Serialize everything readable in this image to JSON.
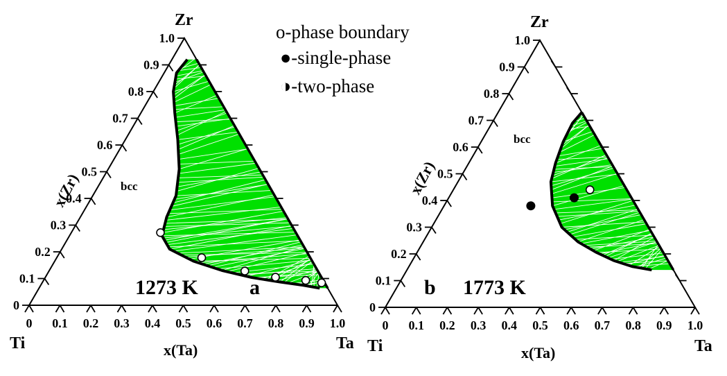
{
  "legend": {
    "boundary": "o-phase boundary",
    "single": "●-single-phase",
    "two": "◑-two-phase"
  },
  "chart_data": [
    {
      "type": "scatter",
      "subtype": "ternary",
      "panel": "a",
      "temperature": "1273 K",
      "vertices": {
        "top": "Zr",
        "left": "Ti",
        "right": "Ta"
      },
      "xlabel": "x(Ta)",
      "ylabel": "x(Zr)",
      "ticks": [
        "0",
        "0.1",
        "0.2",
        "0.3",
        "0.4",
        "0.5",
        "0.6",
        "0.7",
        "0.8",
        "0.9",
        "1.0"
      ],
      "region_label": "bcc",
      "fill_color": "#00e000",
      "boundary_curve": [
        {
          "x_ta": 0.05,
          "x_zr": 0.92
        },
        {
          "x_ta": 0.04,
          "x_zr": 0.87
        },
        {
          "x_ta": 0.065,
          "x_zr": 0.8
        },
        {
          "x_ta": 0.11,
          "x_zr": 0.72
        },
        {
          "x_ta": 0.17,
          "x_zr": 0.62
        },
        {
          "x_ta": 0.23,
          "x_zr": 0.51
        },
        {
          "x_ta": 0.27,
          "x_zr": 0.41
        },
        {
          "x_ta": 0.28,
          "x_zr": 0.33
        },
        {
          "x_ta": 0.3,
          "x_zr": 0.26
        },
        {
          "x_ta": 0.35,
          "x_zr": 0.21
        },
        {
          "x_ta": 0.45,
          "x_zr": 0.165
        },
        {
          "x_ta": 0.56,
          "x_zr": 0.13
        },
        {
          "x_ta": 0.67,
          "x_zr": 0.104
        },
        {
          "x_ta": 0.77,
          "x_zr": 0.087
        },
        {
          "x_ta": 0.85,
          "x_zr": 0.075
        },
        {
          "x_ta": 0.91,
          "x_zr": 0.064
        }
      ],
      "two_phase": [
        {
          "x_ta": 0.289,
          "x_zr": 0.272
        },
        {
          "x_ta": 0.47,
          "x_zr": 0.178
        },
        {
          "x_ta": 0.635,
          "x_zr": 0.128
        },
        {
          "x_ta": 0.746,
          "x_zr": 0.105
        },
        {
          "x_ta": 0.85,
          "x_zr": 0.093
        },
        {
          "x_ta": 0.906,
          "x_zr": 0.084
        }
      ],
      "single_phase": []
    },
    {
      "type": "scatter",
      "subtype": "ternary",
      "panel": "b",
      "temperature": "1773 K",
      "vertices": {
        "top": "Zr",
        "left": "Ti",
        "right": "Ta"
      },
      "xlabel": "x(Ta)",
      "ylabel": "x(Zr)",
      "ticks": [
        "0",
        "0.1",
        "0.2",
        "0.3",
        "0.4",
        "0.5",
        "0.6",
        "0.7",
        "0.8",
        "0.9",
        "1.0"
      ],
      "region_label": "bcc",
      "fill_color": "#00e000",
      "boundary_curve": [
        {
          "x_ta": 0.27,
          "x_zr": 0.73
        },
        {
          "x_ta": 0.26,
          "x_zr": 0.69
        },
        {
          "x_ta": 0.265,
          "x_zr": 0.62
        },
        {
          "x_ta": 0.28,
          "x_zr": 0.54
        },
        {
          "x_ta": 0.3,
          "x_zr": 0.47
        },
        {
          "x_ta": 0.35,
          "x_zr": 0.38
        },
        {
          "x_ta": 0.42,
          "x_zr": 0.3
        },
        {
          "x_ta": 0.5,
          "x_zr": 0.245
        },
        {
          "x_ta": 0.58,
          "x_zr": 0.205
        },
        {
          "x_ta": 0.65,
          "x_zr": 0.175
        },
        {
          "x_ta": 0.72,
          "x_zr": 0.153
        },
        {
          "x_ta": 0.79,
          "x_zr": 0.14
        }
      ],
      "two_phase": [
        {
          "x_ta": 0.441,
          "x_zr": 0.44
        }
      ],
      "single_phase": [
        {
          "x_ta": 0.28,
          "x_zr": 0.38
        },
        {
          "x_ta": 0.405,
          "x_zr": 0.41
        }
      ]
    }
  ]
}
